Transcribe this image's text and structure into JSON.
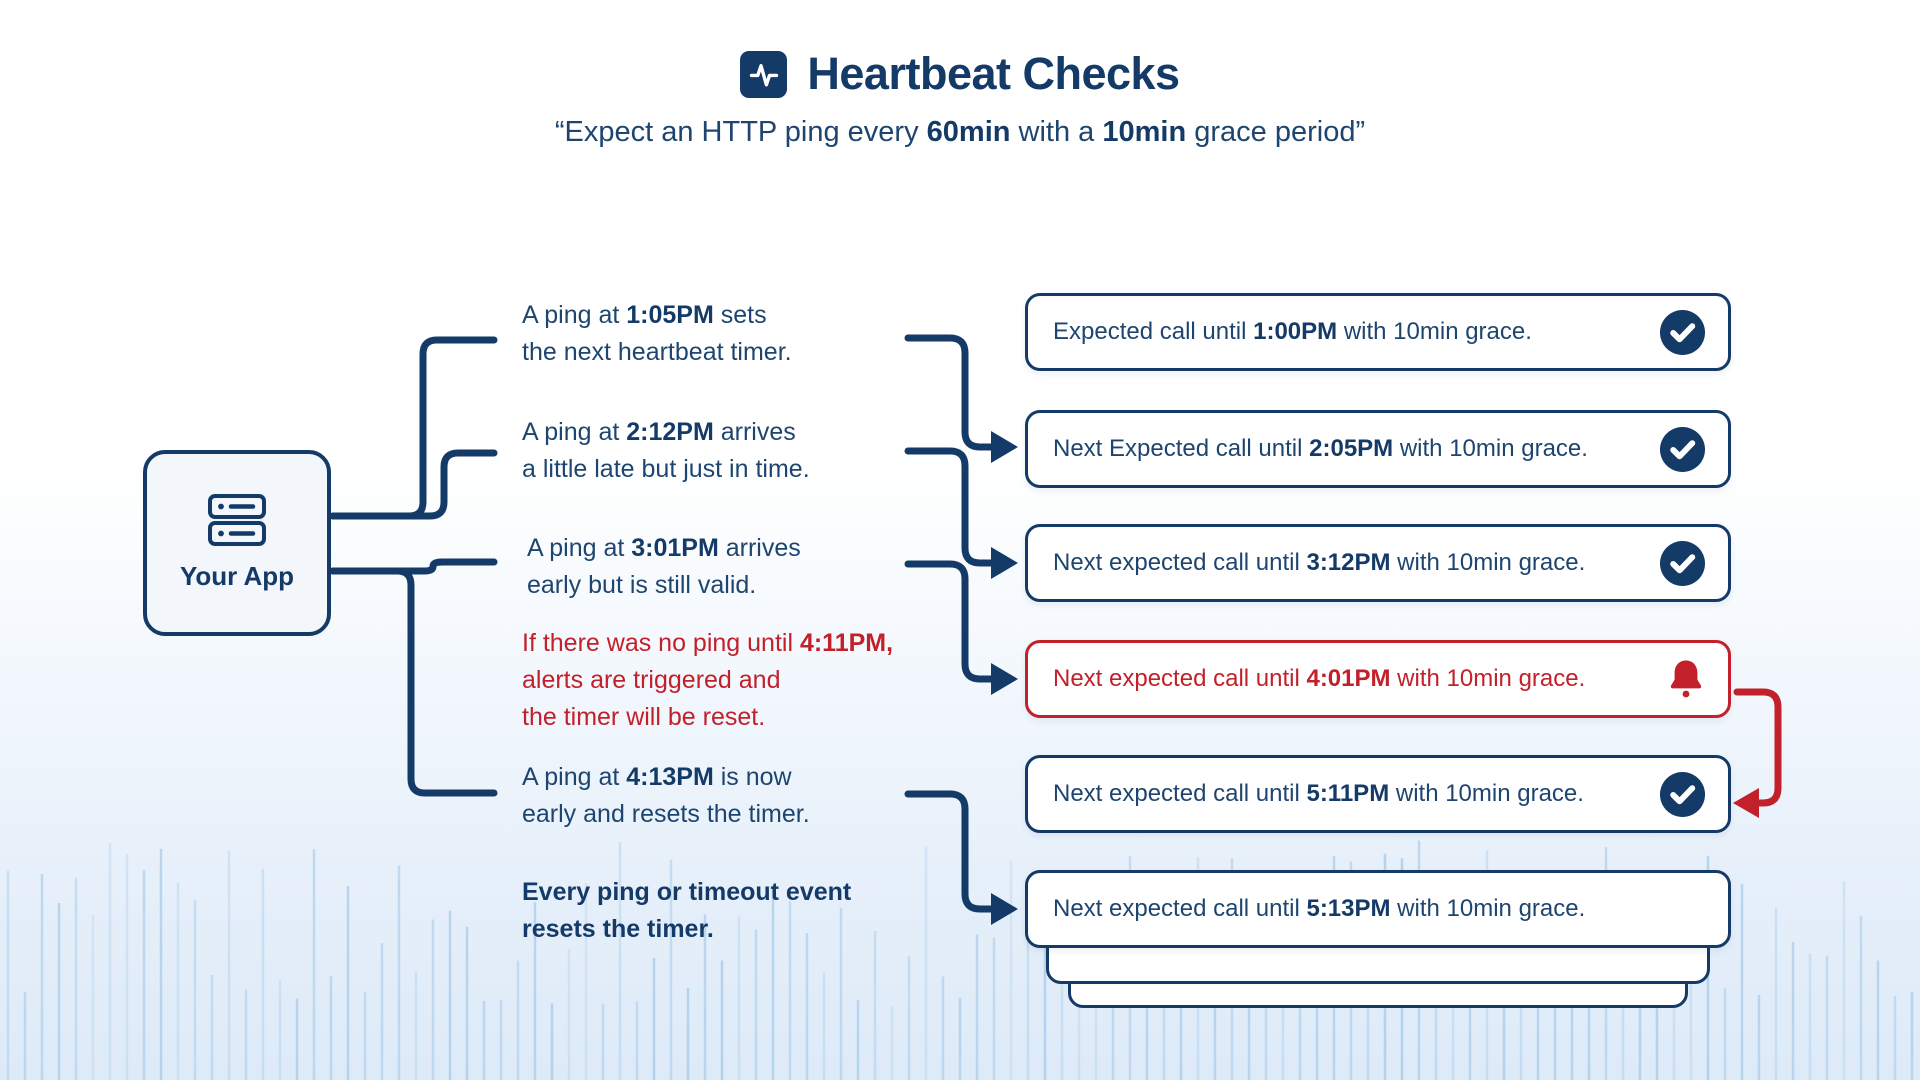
{
  "colors": {
    "navy_dark": "#143A67",
    "navy_mid": "#1E4570",
    "red": "#C2202A",
    "wave": "#A9CCEA"
  },
  "header": {
    "icon": "heartbeat-activity-icon",
    "title": "Heartbeat Checks",
    "subtitle": [
      {
        "t": "“Expect an HTTP ping every ",
        "b": false
      },
      {
        "t": "60min",
        "b": true
      },
      {
        "t": " with a ",
        "b": false
      },
      {
        "t": "10min",
        "b": true
      },
      {
        "t": " grace period”",
        "b": false
      }
    ]
  },
  "app_box": {
    "icon": "server-icon",
    "label": "Your App"
  },
  "annotations": [
    {
      "style": "normal",
      "lines": [
        [
          {
            "t": "A ping at ",
            "b": false
          },
          {
            "t": "1:05PM",
            "b": true
          },
          {
            "t": " sets",
            "b": false
          }
        ],
        [
          {
            "t": "the next heartbeat timer.",
            "b": false
          }
        ]
      ]
    },
    {
      "style": "normal",
      "lines": [
        [
          {
            "t": "A ping at ",
            "b": false
          },
          {
            "t": "2:12PM",
            "b": true
          },
          {
            "t": " arrives",
            "b": false
          }
        ],
        [
          {
            "t": "a little late but just in time.",
            "b": false
          }
        ]
      ]
    },
    {
      "style": "normal",
      "lines": [
        [
          {
            "t": "A ping at ",
            "b": false
          },
          {
            "t": "3:01PM",
            "b": true
          },
          {
            "t": " arrives",
            "b": false
          }
        ],
        [
          {
            "t": "early but is still valid.",
            "b": false
          }
        ]
      ]
    },
    {
      "style": "alert",
      "lines": [
        [
          {
            "t": "If there was no ping until ",
            "b": false
          },
          {
            "t": "4:11PM,",
            "b": true
          }
        ],
        [
          {
            "t": "alerts are triggered and",
            "b": false
          }
        ],
        [
          {
            "t": "the timer will be reset.",
            "b": false
          }
        ]
      ]
    },
    {
      "style": "normal",
      "lines": [
        [
          {
            "t": "A ping at ",
            "b": false
          },
          {
            "t": "4:13PM",
            "b": true
          },
          {
            "t": " is now",
            "b": false
          }
        ],
        [
          {
            "t": "early and resets the timer.",
            "b": false
          }
        ]
      ]
    },
    {
      "style": "bold",
      "lines": [
        [
          {
            "t": "Every ping or timeout event",
            "b": true
          }
        ],
        [
          {
            "t": "resets the timer.",
            "b": true
          }
        ]
      ]
    }
  ],
  "timeline_boxes": [
    {
      "variant": "normal",
      "status_icon": "check-circle-icon",
      "text": [
        {
          "t": "Expected call until ",
          "b": false
        },
        {
          "t": "1:00PM",
          "b": true
        },
        {
          "t": " with 10min grace.",
          "b": false
        }
      ]
    },
    {
      "variant": "normal",
      "status_icon": "check-circle-icon",
      "text": [
        {
          "t": "Next Expected call until ",
          "b": false
        },
        {
          "t": "2:05PM",
          "b": true
        },
        {
          "t": " with 10min grace.",
          "b": false
        }
      ]
    },
    {
      "variant": "normal",
      "status_icon": "check-circle-icon",
      "text": [
        {
          "t": "Next expected call until ",
          "b": false
        },
        {
          "t": "3:12PM",
          "b": true
        },
        {
          "t": " with 10min grace.",
          "b": false
        }
      ]
    },
    {
      "variant": "alert",
      "status_icon": "alert-bell-icon",
      "text": [
        {
          "t": "Next expected call until ",
          "b": false
        },
        {
          "t": "4:01PM",
          "b": true
        },
        {
          "t": " with 10min grace.",
          "b": false
        }
      ]
    },
    {
      "variant": "normal",
      "status_icon": "check-circle-icon",
      "text": [
        {
          "t": "Next expected call until ",
          "b": false
        },
        {
          "t": "5:11PM",
          "b": true
        },
        {
          "t": " with 10min grace.",
          "b": false
        }
      ]
    },
    {
      "variant": "normal",
      "status_icon": null,
      "text": [
        {
          "t": "Next expected call until ",
          "b": false
        },
        {
          "t": "5:13PM",
          "b": true
        },
        {
          "t": " with 10min grace.",
          "b": false
        }
      ]
    }
  ]
}
